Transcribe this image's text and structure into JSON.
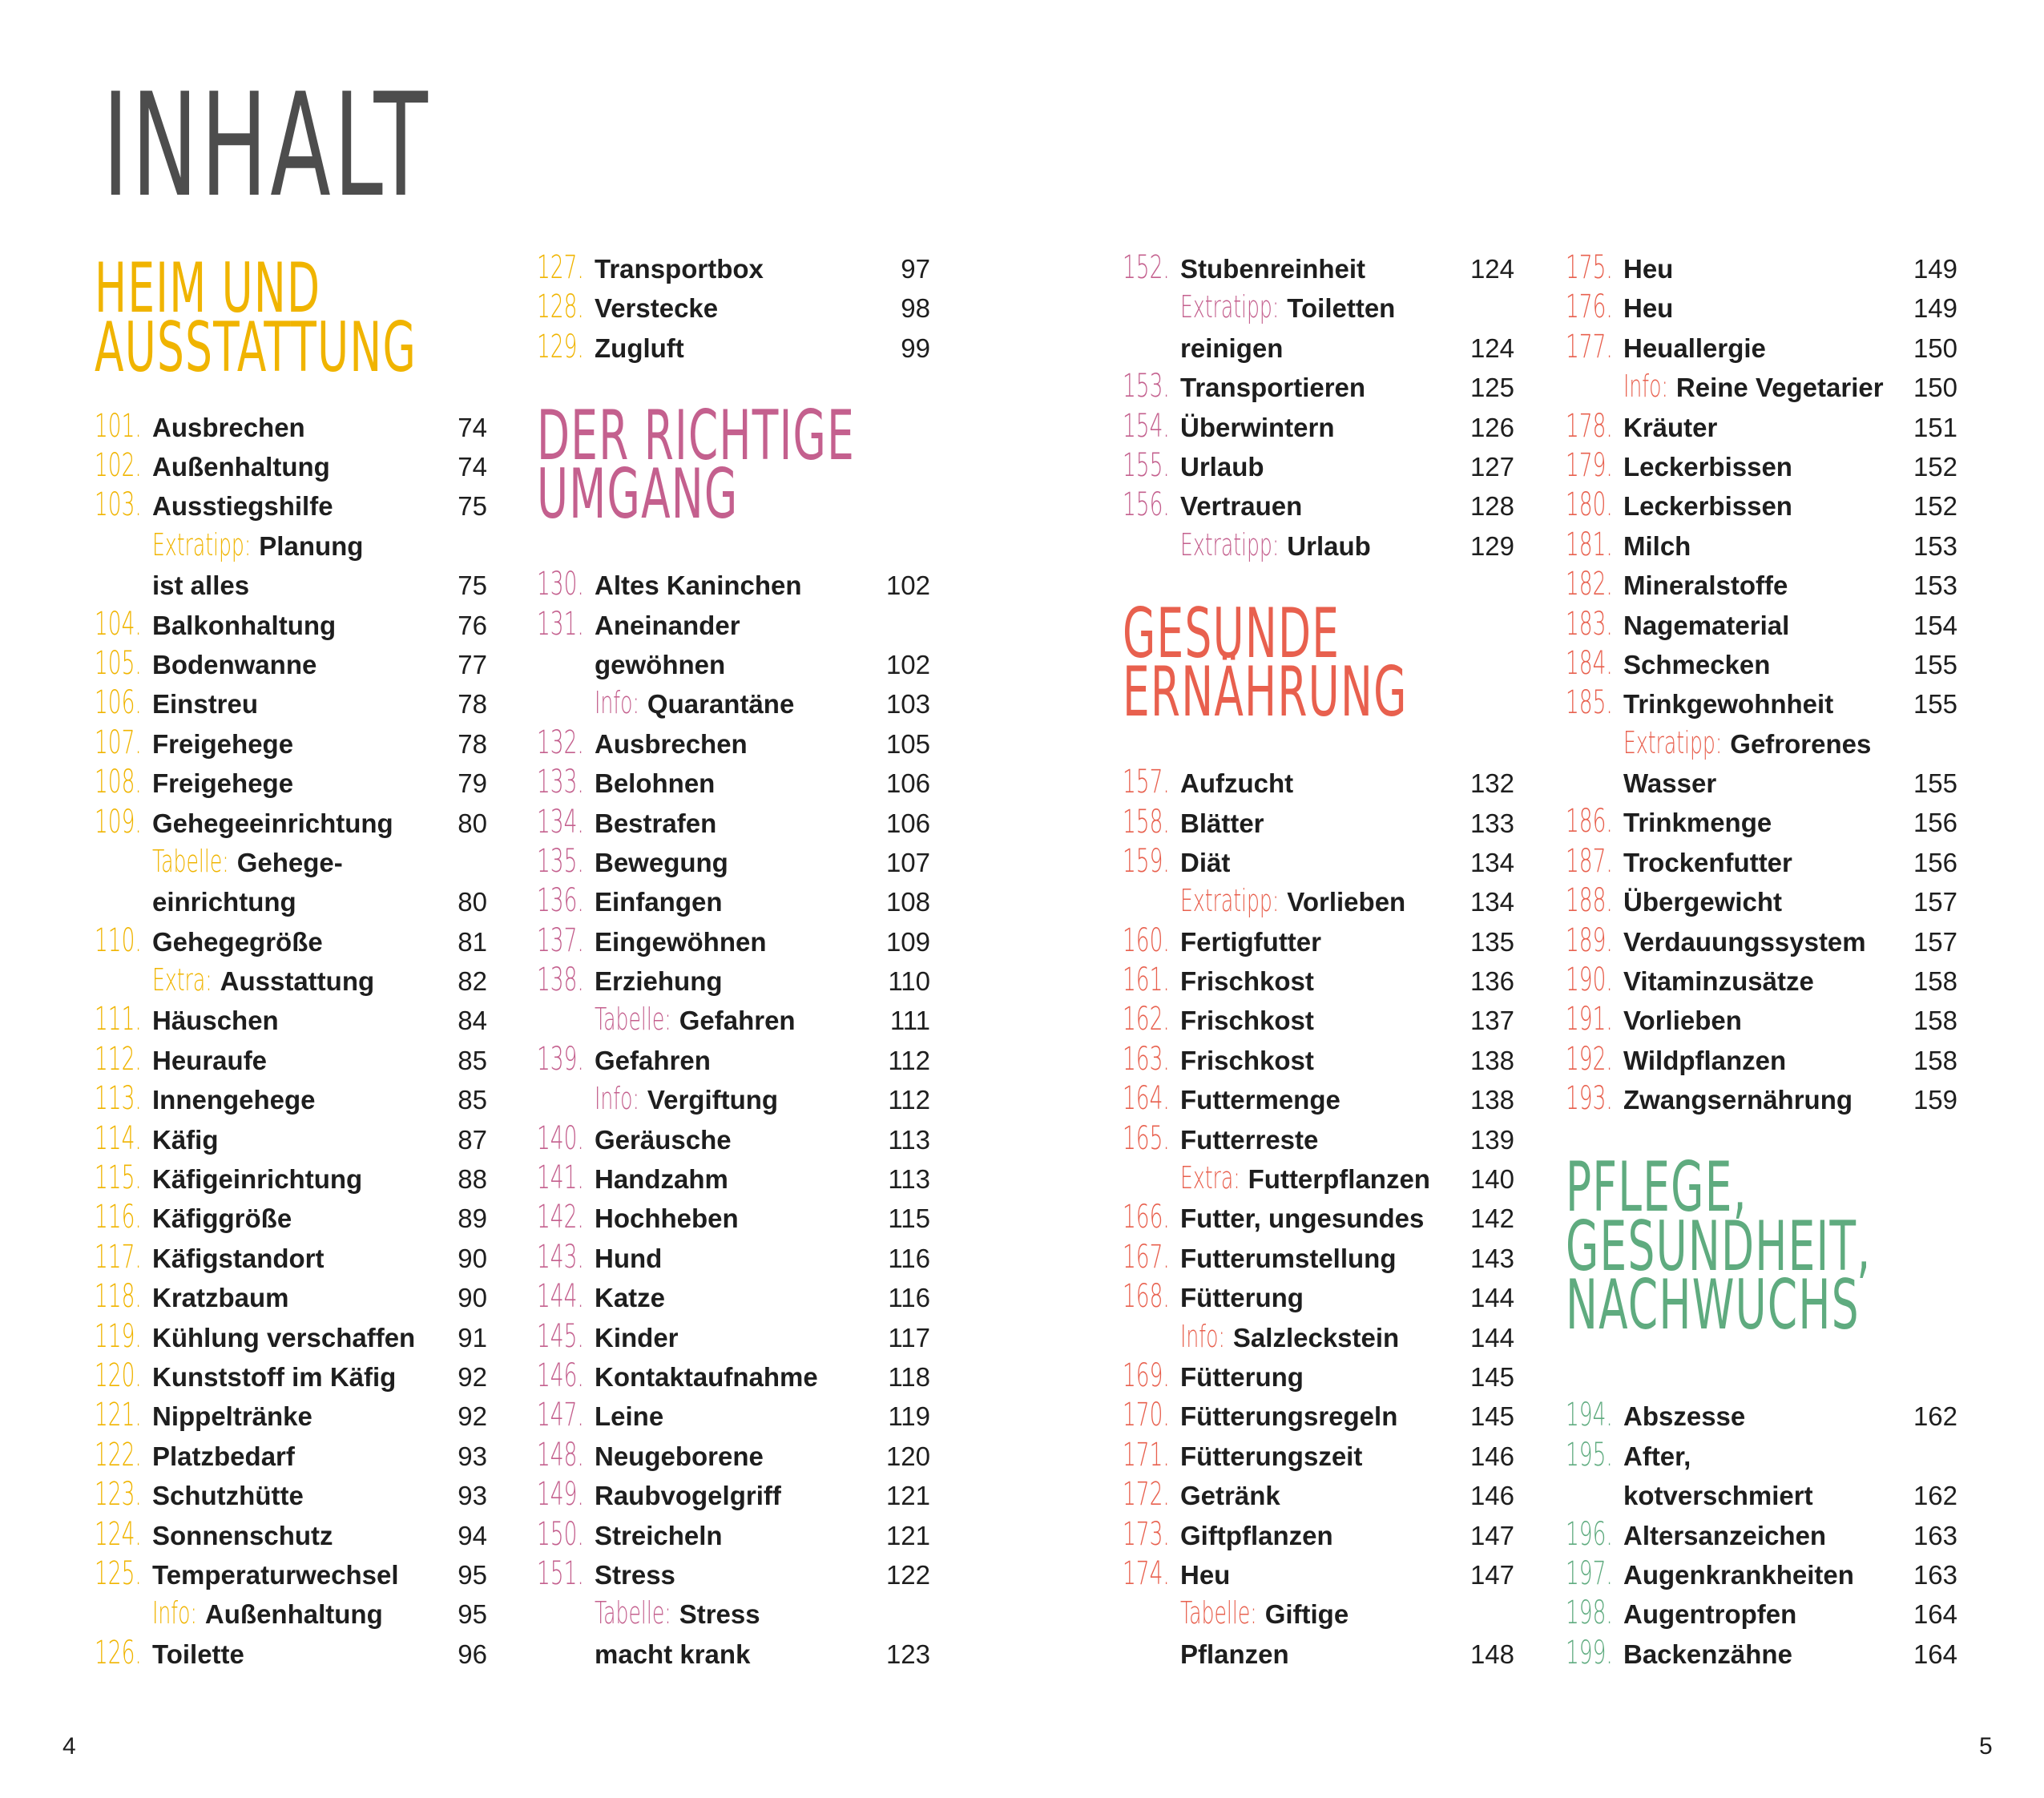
{
  "title": "INHALT",
  "page_left": "4",
  "page_right": "5",
  "colors": {
    "yellow": "#f0b400",
    "pink": "#c4608e",
    "red": "#e8604e",
    "green": "#5fab7f",
    "title": "#4d4d4d"
  },
  "columns": [
    {
      "sections": [
        {
          "color": "yellow",
          "gap": 0,
          "heading_slots": 4,
          "heading": [
            "HEIM UND",
            "AUSSTATTUNG"
          ],
          "rows": [
            {
              "n": "101.",
              "t": "Ausbrechen",
              "p": "74"
            },
            {
              "n": "102.",
              "t": "Außenhaltung",
              "p": "74"
            },
            {
              "n": "103.",
              "t": "Ausstiegshilfe",
              "p": "75"
            },
            {
              "l": "Extratipp:",
              "t": "Planung"
            },
            {
              "t": "ist alles",
              "p": "75"
            },
            {
              "n": "104.",
              "t": "Balkonhaltung",
              "p": "76"
            },
            {
              "n": "105.",
              "t": "Bodenwanne",
              "p": "77"
            },
            {
              "n": "106.",
              "t": "Einstreu",
              "p": "78"
            },
            {
              "n": "107.",
              "t": "Freigehege",
              "p": "78"
            },
            {
              "n": "108.",
              "t": "Freigehege",
              "p": "79"
            },
            {
              "n": "109.",
              "t": "Gehegeeinrichtung",
              "p": "80"
            },
            {
              "l": "Tabelle:",
              "t": "Gehege-"
            },
            {
              "t": "einrichtung",
              "p": "80"
            },
            {
              "n": "110.",
              "t": "Gehegegröße",
              "p": "81"
            },
            {
              "l": "Extra:",
              "t": "Ausstattung",
              "p": "82"
            },
            {
              "n": "111.",
              "t": "Häuschen",
              "p": "84"
            },
            {
              "n": "112.",
              "t": "Heuraufe",
              "p": "85"
            },
            {
              "n": "113.",
              "t": "Innengehege",
              "p": "85"
            },
            {
              "n": "114.",
              "t": "Käfig",
              "p": "87"
            },
            {
              "n": "115.",
              "t": "Käfigeinrichtung",
              "p": "88"
            },
            {
              "n": "116.",
              "t": "Käfiggröße",
              "p": "89"
            },
            {
              "n": "117.",
              "t": "Käfigstandort",
              "p": "90"
            },
            {
              "n": "118.",
              "t": "Kratzbaum",
              "p": "90"
            },
            {
              "n": "119.",
              "t": "Kühlung verschaffen",
              "p": "91"
            },
            {
              "n": "120.",
              "t": "Kunststoff im Käfig",
              "p": "92"
            },
            {
              "n": "121.",
              "t": "Nippeltränke",
              "p": "92"
            },
            {
              "n": "122.",
              "t": "Platzbedarf",
              "p": "93"
            },
            {
              "n": "123.",
              "t": "Schutzhütte",
              "p": "93"
            },
            {
              "n": "124.",
              "t": "Sonnenschutz",
              "p": "94"
            },
            {
              "n": "125.",
              "t": "Temperaturwechsel",
              "p": "95"
            },
            {
              "l": "Info:",
              "t": "Außenhaltung",
              "p": "95"
            },
            {
              "n": "126.",
              "t": "Toilette",
              "p": "96"
            }
          ]
        }
      ]
    },
    {
      "sections": [
        {
          "color": "yellow",
          "gap": 0,
          "heading_slots": 0,
          "heading": [],
          "rows": [
            {
              "n": "127.",
              "t": "Transportbox",
              "p": "97"
            },
            {
              "n": "128.",
              "t": "Verstecke",
              "p": "98"
            },
            {
              "n": "129.",
              "t": "Zugluft",
              "p": "99"
            }
          ]
        },
        {
          "color": "pink",
          "gap": 1,
          "heading_slots": 4,
          "heading": [
            "DER RICHTIGE",
            "UMGANG"
          ],
          "rows": [
            {
              "n": "130.",
              "t": "Altes Kaninchen",
              "p": "102"
            },
            {
              "n": "131.",
              "t": "Aneinander"
            },
            {
              "t": "gewöhnen",
              "p": "102"
            },
            {
              "l": "Info:",
              "t": "Quarantäne",
              "p": "103"
            },
            {
              "n": "132.",
              "t": "Ausbrechen",
              "p": "105"
            },
            {
              "n": "133.",
              "t": "Belohnen",
              "p": "106"
            },
            {
              "n": "134.",
              "t": "Bestrafen",
              "p": "106"
            },
            {
              "n": "135.",
              "t": "Bewegung",
              "p": "107"
            },
            {
              "n": "136.",
              "t": "Einfangen",
              "p": "108"
            },
            {
              "n": "137.",
              "t": "Eingewöhnen",
              "p": "109"
            },
            {
              "n": "138.",
              "t": "Erziehung",
              "p": "110"
            },
            {
              "l": "Tabelle:",
              "t": "Gefahren",
              "p": "111"
            },
            {
              "n": "139.",
              "t": "Gefahren",
              "p": "112"
            },
            {
              "l": "Info:",
              "t": "Vergiftung",
              "p": "112"
            },
            {
              "n": "140.",
              "t": "Geräusche",
              "p": "113"
            },
            {
              "n": "141.",
              "t": "Handzahm",
              "p": "113"
            },
            {
              "n": "142.",
              "t": "Hochheben",
              "p": "115"
            },
            {
              "n": "143.",
              "t": "Hund",
              "p": "116"
            },
            {
              "n": "144.",
              "t": "Katze",
              "p": "116"
            },
            {
              "n": "145.",
              "t": "Kinder",
              "p": "117"
            },
            {
              "n": "146.",
              "t": "Kontaktaufnahme",
              "p": "118"
            },
            {
              "n": "147.",
              "t": "Leine",
              "p": "119"
            },
            {
              "n": "148.",
              "t": "Neugeborene",
              "p": "120"
            },
            {
              "n": "149.",
              "t": "Raubvogelgriff",
              "p": "121"
            },
            {
              "n": "150.",
              "t": "Streicheln",
              "p": "121"
            },
            {
              "n": "151.",
              "t": "Stress",
              "p": "122"
            },
            {
              "l": "Tabelle:",
              "t": "Stress"
            },
            {
              "t": "macht krank",
              "p": "123"
            }
          ]
        }
      ]
    },
    {
      "sections": [
        {
          "color": "pink",
          "gap": 0,
          "heading_slots": 0,
          "heading": [],
          "rows": [
            {
              "n": "152.",
              "t": "Stubenreinheit",
              "p": "124"
            },
            {
              "l": "Extratipp:",
              "t": "Toiletten"
            },
            {
              "t": "reinigen",
              "p": "124"
            },
            {
              "n": "153.",
              "t": "Transportieren",
              "p": "125"
            },
            {
              "n": "154.",
              "t": "Überwintern",
              "p": "126"
            },
            {
              "n": "155.",
              "t": "Urlaub",
              "p": "127"
            },
            {
              "n": "156.",
              "t": "Vertrauen",
              "p": "128"
            },
            {
              "l": "Extratipp:",
              "t": "Urlaub",
              "p": "129"
            }
          ]
        },
        {
          "color": "red",
          "gap": 1,
          "heading_slots": 4,
          "heading": [
            "GESUNDE",
            "ERNÄHRUNG"
          ],
          "rows": [
            {
              "n": "157.",
              "t": "Aufzucht",
              "p": "132"
            },
            {
              "n": "158.",
              "t": "Blätter",
              "p": "133"
            },
            {
              "n": "159.",
              "t": "Diät",
              "p": "134"
            },
            {
              "l": "Extratipp:",
              "t": "Vorlieben",
              "p": "134"
            },
            {
              "n": "160.",
              "t": "Fertigfutter",
              "p": "135"
            },
            {
              "n": "161.",
              "t": "Frischkost",
              "p": "136"
            },
            {
              "n": "162.",
              "t": "Frischkost",
              "p": "137"
            },
            {
              "n": "163.",
              "t": "Frischkost",
              "p": "138"
            },
            {
              "n": "164.",
              "t": "Futtermenge",
              "p": "138"
            },
            {
              "n": "165.",
              "t": "Futterreste",
              "p": "139"
            },
            {
              "l": "Extra:",
              "t": "Futterpflanzen",
              "p": "140"
            },
            {
              "n": "166.",
              "t": "Futter, ungesundes",
              "p": "142"
            },
            {
              "n": "167.",
              "t": "Futterumstellung",
              "p": "143"
            },
            {
              "n": "168.",
              "t": "Fütterung",
              "p": "144"
            },
            {
              "l": "Info:",
              "t": "Salzleckstein",
              "p": "144"
            },
            {
              "n": "169.",
              "t": "Fütterung",
              "p": "145"
            },
            {
              "n": "170.",
              "t": "Fütterungsregeln",
              "p": "145"
            },
            {
              "n": "171.",
              "t": "Fütterungszeit",
              "p": "146"
            },
            {
              "n": "172.",
              "t": "Getränk",
              "p": "146"
            },
            {
              "n": "173.",
              "t": "Giftpflanzen",
              "p": "147"
            },
            {
              "n": "174.",
              "t": "Heu",
              "p": "147"
            },
            {
              "l": "Tabelle:",
              "t": "Giftige"
            },
            {
              "t": "Pflanzen",
              "p": "148"
            }
          ]
        }
      ]
    },
    {
      "sections": [
        {
          "color": "red",
          "gap": 0,
          "heading_slots": 0,
          "heading": [],
          "rows": [
            {
              "n": "175.",
              "t": "Heu",
              "p": "149"
            },
            {
              "n": "176.",
              "t": "Heu",
              "p": "149"
            },
            {
              "n": "177.",
              "t": "Heuallergie",
              "p": "150"
            },
            {
              "l": "Info:",
              "t": "Reine Vegetarier",
              "p": "150"
            },
            {
              "n": "178.",
              "t": "Kräuter",
              "p": "151"
            },
            {
              "n": "179.",
              "t": "Leckerbissen",
              "p": "152"
            },
            {
              "n": "180.",
              "t": "Leckerbissen",
              "p": "152"
            },
            {
              "n": "181.",
              "t": "Milch",
              "p": "153"
            },
            {
              "n": "182.",
              "t": "Mineralstoffe",
              "p": "153"
            },
            {
              "n": "183.",
              "t": "Nagematerial",
              "p": "154"
            },
            {
              "n": "184.",
              "t": "Schmecken",
              "p": "155"
            },
            {
              "n": "185.",
              "t": "Trinkgewohnheit",
              "p": "155"
            },
            {
              "l": "Extratipp:",
              "t": "Gefrorenes"
            },
            {
              "t": "Wasser",
              "p": "155"
            },
            {
              "n": "186.",
              "t": "Trinkmenge",
              "p": "156"
            },
            {
              "n": "187.",
              "t": "Trockenfutter",
              "p": "156"
            },
            {
              "n": "188.",
              "t": "Übergewicht",
              "p": "157"
            },
            {
              "n": "189.",
              "t": "Verdauungssystem",
              "p": "157"
            },
            {
              "n": "190.",
              "t": "Vitaminzusätze",
              "p": "158"
            },
            {
              "n": "191.",
              "t": "Vorlieben",
              "p": "158"
            },
            {
              "n": "192.",
              "t": "Wildpflanzen",
              "p": "158"
            },
            {
              "n": "193.",
              "t": "Zwangsernährung",
              "p": "159"
            }
          ]
        },
        {
          "color": "green",
          "gap": 1,
          "heading_slots": 6,
          "heading": [
            "PFLEGE,",
            "GESUNDHEIT,",
            "NACHWUCHS"
          ],
          "rows": [
            {
              "n": "194.",
              "t": "Abszesse",
              "p": "162"
            },
            {
              "n": "195.",
              "t": "After,"
            },
            {
              "t": "kotverschmiert",
              "p": "162"
            },
            {
              "n": "196.",
              "t": "Altersanzeichen",
              "p": "163"
            },
            {
              "n": "197.",
              "t": "Augenkrankheiten",
              "p": "163"
            },
            {
              "n": "198.",
              "t": "Augentropfen",
              "p": "164"
            },
            {
              "n": "199.",
              "t": "Backenzähne",
              "p": "164"
            }
          ]
        }
      ]
    }
  ]
}
